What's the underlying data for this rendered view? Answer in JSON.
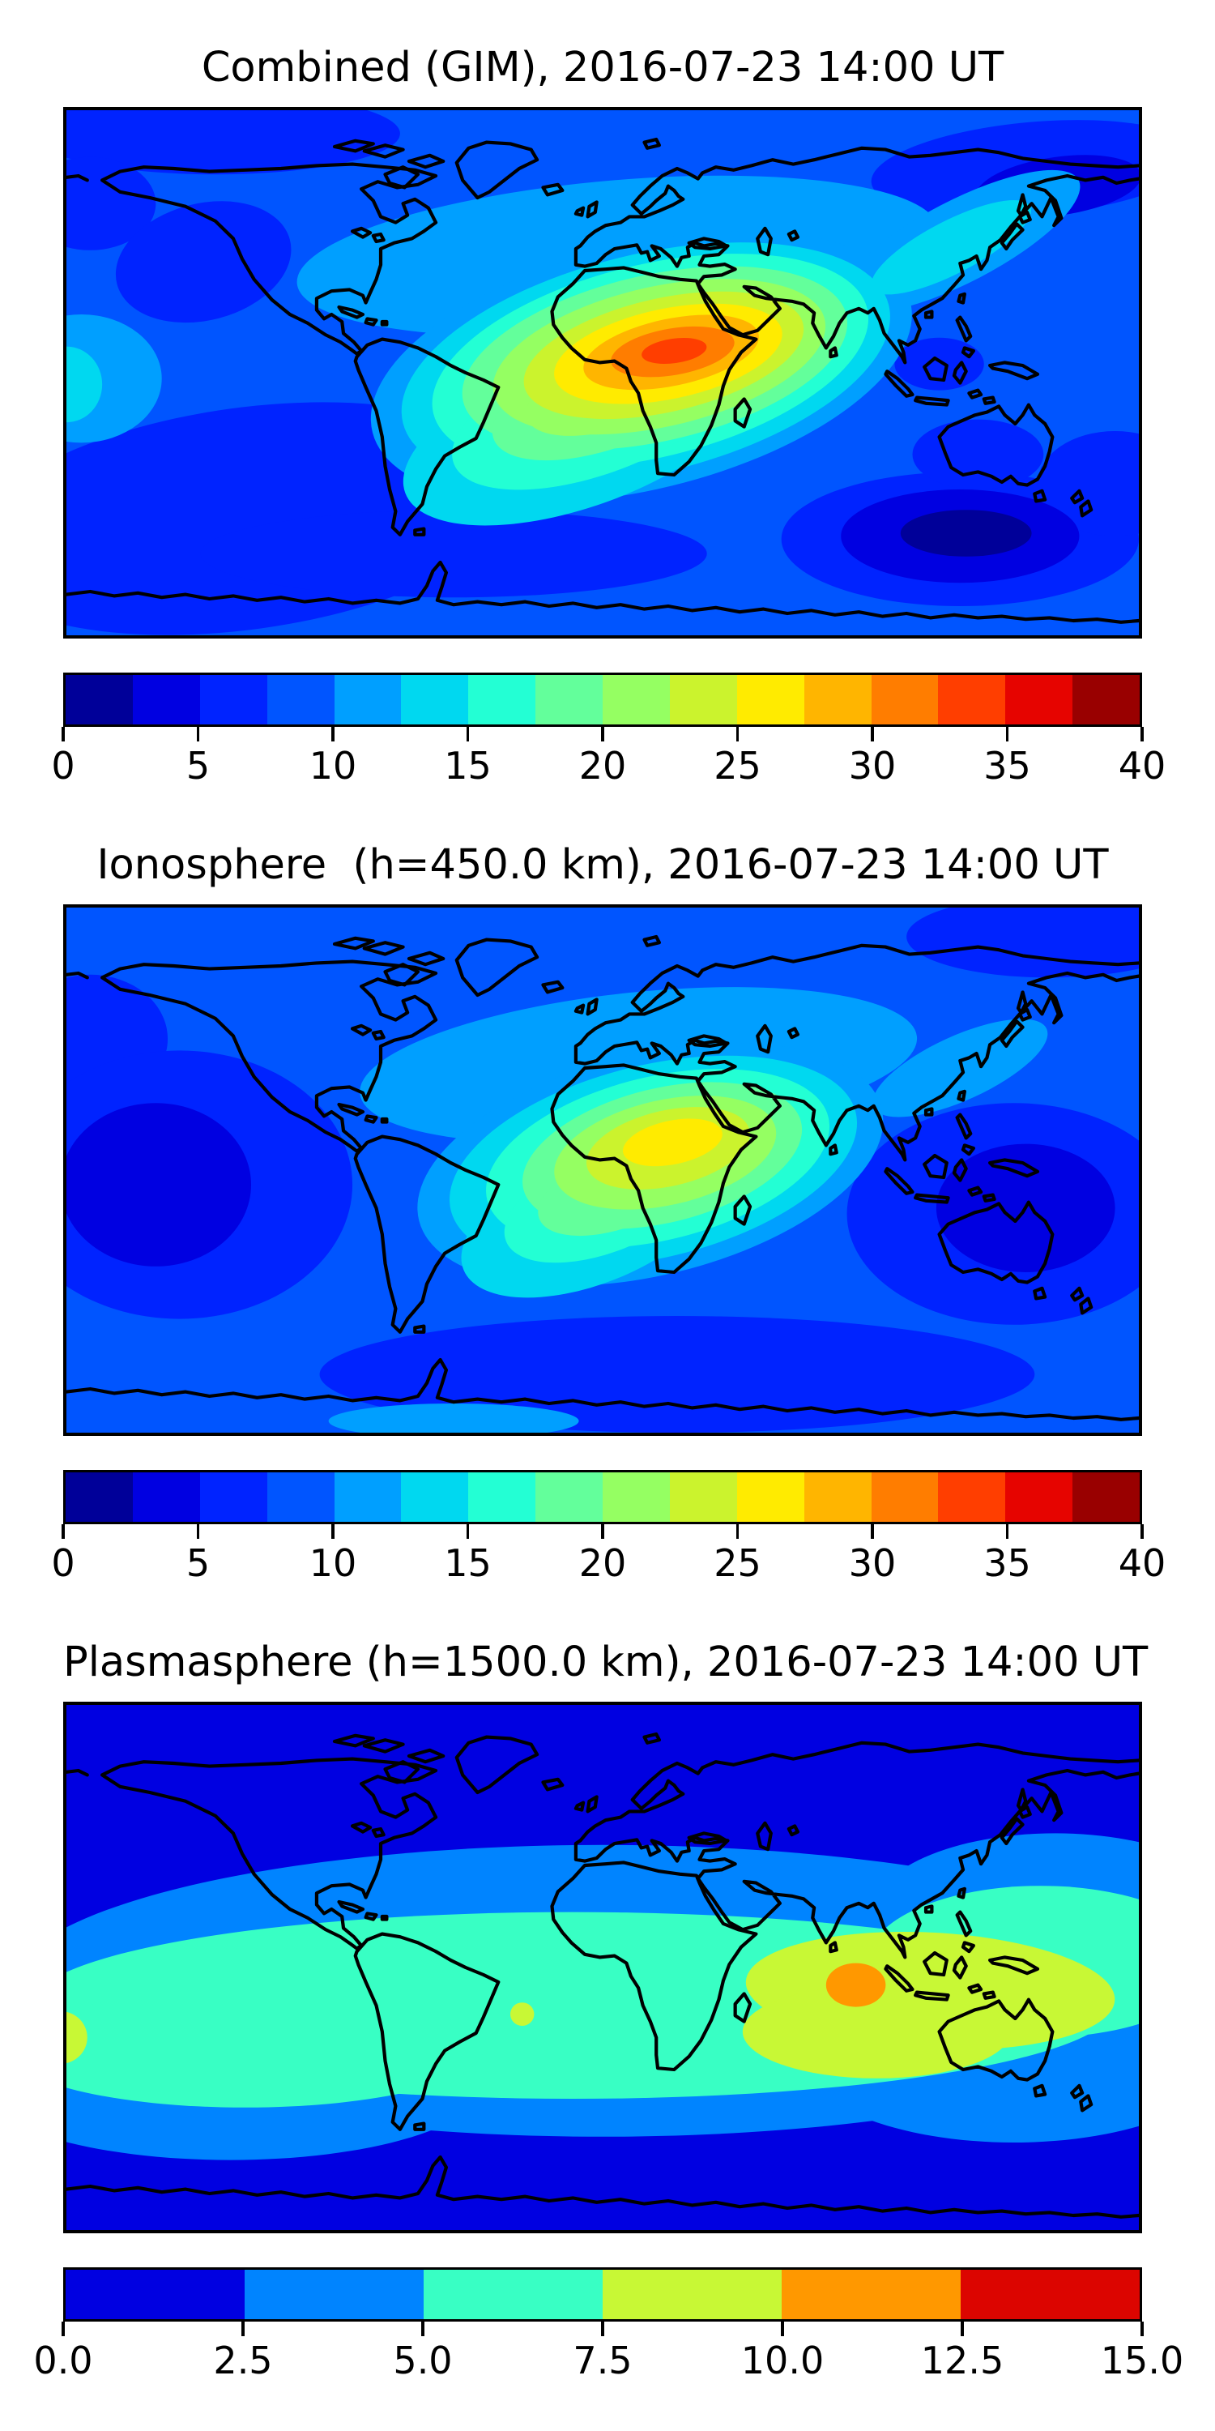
{
  "figure": {
    "background": "#ffffff",
    "coastline_color": "#000000",
    "font_color": "#000000"
  },
  "palettes": {
    "jet16": [
      "#000099",
      "#0000E1",
      "#0023FF",
      "#0055FF",
      "#009FFF",
      "#00D8F0",
      "#23FFD4",
      "#63FF9B",
      "#95FF62",
      "#CBF32D",
      "#FFEB00",
      "#FFB500",
      "#FF7D00",
      "#FF3E00",
      "#E60400",
      "#990000"
    ],
    "jet6": [
      "#0000E1",
      "#0084FF",
      "#38FFC4",
      "#C8F835",
      "#FF9800",
      "#DC0500"
    ]
  },
  "panels": [
    {
      "id": "combined",
      "title": "Combined (GIM), 2016-07-23 14:00 UT",
      "colorbar": {
        "palette": "jet16",
        "min": 0,
        "max": 40,
        "step": 2.5,
        "ticks": [
          "0",
          "5",
          "10",
          "15",
          "20",
          "25",
          "30",
          "35",
          "40"
        ]
      }
    },
    {
      "id": "ionosphere",
      "title": "Ionosphere  (h=450.0 km), 2016-07-23 14:00 UT",
      "colorbar": {
        "palette": "jet16",
        "min": 0,
        "max": 40,
        "step": 2.5,
        "ticks": [
          "0",
          "5",
          "10",
          "15",
          "20",
          "25",
          "30",
          "35",
          "40"
        ]
      }
    },
    {
      "id": "plasmasphere",
      "title": "Plasmasphere (h=1500.0 km), 2016-07-23 14:00 UT",
      "colorbar": {
        "palette": "jet6",
        "min": 0,
        "max": 15,
        "step": 2.5,
        "ticks": [
          "0.0",
          "2.5",
          "5.0",
          "7.5",
          "10.0",
          "12.5",
          "15.0"
        ]
      }
    }
  ],
  "chart_data": [
    {
      "type": "heatmap",
      "title": "Combined (GIM), 2016-07-23 14:00 UT",
      "projection": "equirectangular",
      "x_range_lon": [
        -180,
        180
      ],
      "y_range_lat": [
        -90,
        90
      ],
      "colorbar_range": [
        0,
        40
      ],
      "contour_levels": [
        0,
        2.5,
        5,
        7.5,
        10,
        12.5,
        15,
        17.5,
        20,
        22.5,
        25,
        27.5,
        30,
        32.5,
        35,
        37.5,
        40
      ],
      "colormap": "jet (16 discrete levels)",
      "legend_position": "horizontal colorbar below map",
      "max_feature": {
        "approx_value": 34,
        "level_band": [
          32.5,
          35
        ],
        "lon": 22,
        "lat": 8,
        "region": "central Africa / Sahel"
      },
      "pattern": "Concentric filled contours elongated WSW-ENE from eastern South America across Africa to Arabia/India; red-orange core over Chad/Sudan, rings descending through orange, yellow, green, cyan; mid-blue background; darker blue over N Pacific, NE Siberia, southern oceans; darkest patch over south Indian Ocean near (120E, -55)."
    },
    {
      "type": "heatmap",
      "title": "Ionosphere  (h=450.0 km), 2016-07-23 14:00 UT",
      "projection": "equirectangular",
      "x_range_lon": [
        -180,
        180
      ],
      "y_range_lat": [
        -90,
        90
      ],
      "colorbar_range": [
        0,
        40
      ],
      "contour_levels": [
        0,
        2.5,
        5,
        7.5,
        10,
        12.5,
        15,
        17.5,
        20,
        22.5,
        25,
        27.5,
        30,
        32.5,
        35,
        37.5,
        40
      ],
      "colormap": "jet (16 discrete levels)",
      "legend_position": "horizontal colorbar below map",
      "max_feature": {
        "approx_value": 26,
        "level_band": [
          25,
          27.5
        ],
        "lon": 22,
        "lat": 10,
        "region": "Sahel / Sudan"
      },
      "pattern": "Same ring structure as combined map but weaker: yellow core over north-central Africa surrounded by green/cyan rings reaching Brazil and Arabia; dark blue minima over eastern Pacific and south Indian Ocean; light blue band over North Atlantic and Europe."
    },
    {
      "type": "heatmap",
      "title": "Plasmasphere (h=1500.0 km), 2016-07-23 14:00 UT",
      "projection": "equirectangular",
      "x_range_lon": [
        -180,
        180
      ],
      "y_range_lat": [
        -90,
        90
      ],
      "colorbar_range": [
        0,
        15
      ],
      "contour_levels": [
        0,
        2.5,
        5,
        7.5,
        10,
        12.5,
        15
      ],
      "colormap": "jet (6 discrete levels)",
      "legend_position": "horizontal colorbar below map",
      "max_feature": {
        "approx_value": 11,
        "level_band": [
          10,
          12.5
        ],
        "lon": 85,
        "lat": -5,
        "region": "south of India / equatorial Indian Ocean"
      },
      "pattern": "Zonal bands: dark blue polar caps, light-blue mid-latitude bands, wide turquoise equatorial belt, yellow-green enhancement from east Africa across south Asia to the west Pacific, small orange maximum near Sri Lanka; tiny yellow-green spots at the western map edge and mid-Atlantic."
    }
  ]
}
